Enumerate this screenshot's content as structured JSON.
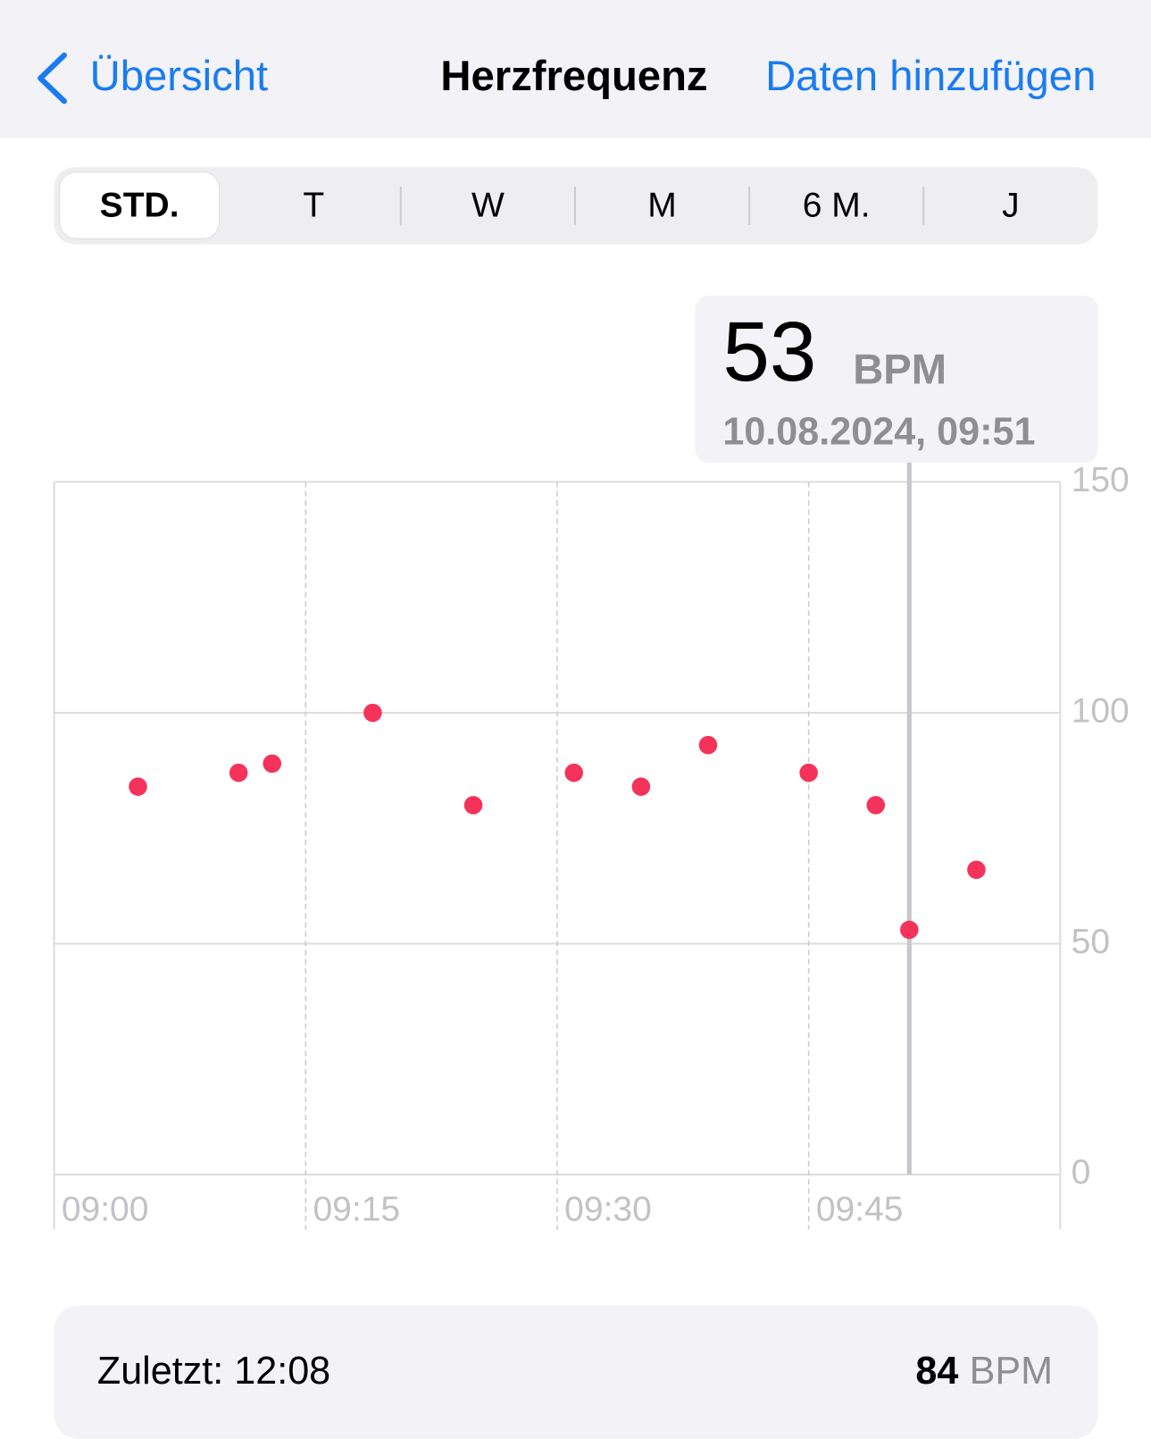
{
  "nav": {
    "back": "Übersicht",
    "title": "Herzfrequenz",
    "action": "Daten hinzufügen"
  },
  "segments": [
    "STD.",
    "T",
    "W",
    "M",
    "6 M.",
    "J"
  ],
  "tooltip": {
    "value": 53,
    "unit": "BPM",
    "date": "10.08.2024, 09:51"
  },
  "chart_data": {
    "type": "scatter",
    "x": [
      5,
      11,
      13,
      19,
      25,
      31,
      35,
      39,
      45,
      49,
      51,
      55
    ],
    "values": [
      84,
      87,
      89,
      100,
      80,
      87,
      84,
      93,
      87,
      80,
      53,
      66
    ],
    "color": "#f5325a",
    "xlim": [
      0,
      60
    ],
    "xticks": [
      {
        "value": 0,
        "label": "09:00"
      },
      {
        "value": 15,
        "label": "09:15"
      },
      {
        "value": 30,
        "label": "09:30"
      },
      {
        "value": 45,
        "label": "09:45"
      }
    ],
    "ylim": [
      0,
      150
    ],
    "yticks": [
      0,
      50,
      100,
      150
    ],
    "grid": true
  },
  "footer": {
    "label": "Zuletzt: 12:08",
    "value": 84,
    "unit": "BPM"
  }
}
